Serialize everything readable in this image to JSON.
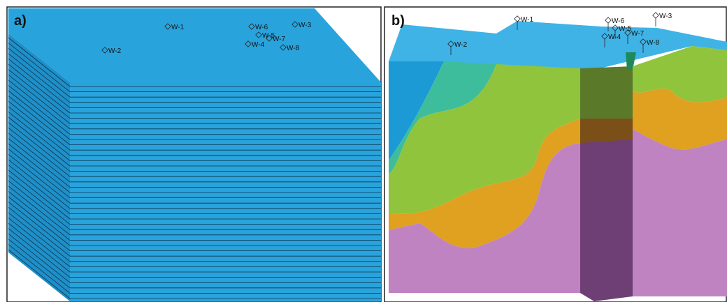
{
  "panels": [
    {
      "label": "a)",
      "wells": [
        "W-1",
        "W-2",
        "W-3",
        "W-4",
        "W-5",
        "W-6",
        "W-7",
        "W-8"
      ]
    },
    {
      "label": "b)",
      "wells": [
        "W-1",
        "W-2",
        "W-3",
        "W-4",
        "W-5",
        "W-6",
        "W-7",
        "W-8"
      ]
    }
  ]
}
